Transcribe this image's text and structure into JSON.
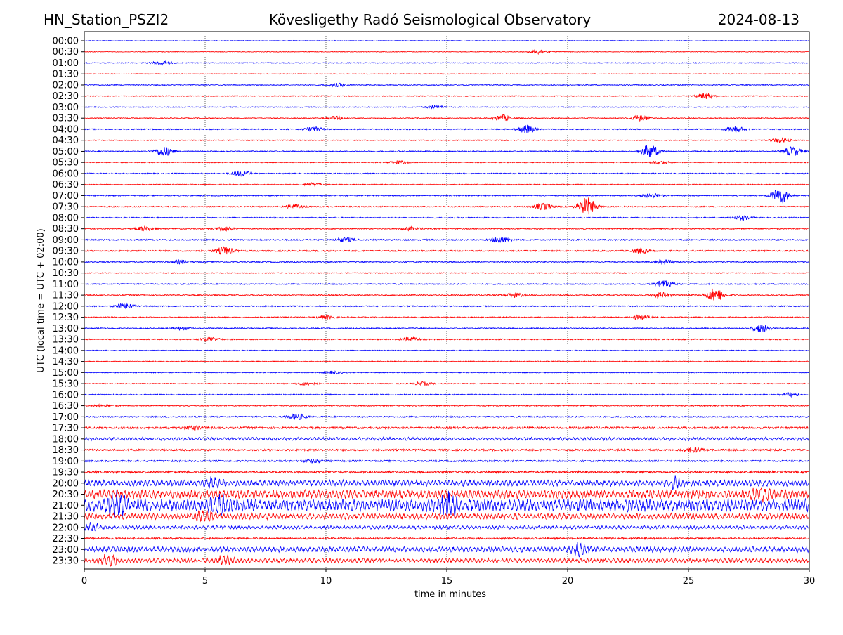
{
  "header": {
    "station": "HN_Station_PSZI2",
    "observatory": "Kövesligethy Radó Seismological Observatory",
    "date": "2024-08-13"
  },
  "chart_data": {
    "type": "line",
    "title": "Kövesligethy Radó Seismological Observatory",
    "xlabel": "time in minutes",
    "ylabel": "UTC (local time = UTC + 02:00)",
    "xlim": [
      0,
      30
    ],
    "xticks": [
      "0",
      "5",
      "10",
      "15",
      "20",
      "25",
      "30"
    ],
    "grid": "vertical dotted at 5-minute ticks",
    "colors": {
      "even": "#0000ff",
      "odd": "#ff0000"
    },
    "rows": [
      "00:00",
      "00:30",
      "01:00",
      "01:30",
      "02:00",
      "02:30",
      "03:00",
      "03:30",
      "04:00",
      "04:30",
      "05:00",
      "05:30",
      "06:00",
      "06:30",
      "07:00",
      "07:30",
      "08:00",
      "08:30",
      "09:00",
      "09:30",
      "10:00",
      "10:30",
      "11:00",
      "11:30",
      "12:00",
      "12:30",
      "13:00",
      "13:30",
      "14:00",
      "14:30",
      "15:00",
      "15:30",
      "16:00",
      "16:30",
      "17:00",
      "17:30",
      "18:00",
      "18:30",
      "19:00",
      "19:30",
      "20:00",
      "20:30",
      "21:00",
      "21:30",
      "22:00",
      "22:30",
      "23:00",
      "23:30"
    ],
    "noise_level": [
      0.03,
      0.03,
      0.04,
      0.03,
      0.04,
      0.04,
      0.04,
      0.04,
      0.05,
      0.04,
      0.05,
      0.04,
      0.05,
      0.04,
      0.05,
      0.05,
      0.05,
      0.05,
      0.06,
      0.06,
      0.05,
      0.04,
      0.05,
      0.05,
      0.05,
      0.05,
      0.05,
      0.05,
      0.04,
      0.04,
      0.04,
      0.04,
      0.05,
      0.05,
      0.06,
      0.09,
      0.13,
      0.08,
      0.07,
      0.1,
      0.25,
      0.35,
      0.5,
      0.25,
      0.14,
      0.08,
      0.22,
      0.18
    ],
    "events_min_amp": [
      [],
      [
        [
          18.8,
          0.2
        ]
      ],
      [
        [
          3.2,
          0.2
        ]
      ],
      [],
      [
        [
          10.5,
          0.15
        ]
      ],
      [
        [
          25.7,
          0.25
        ]
      ],
      [
        [
          14.5,
          0.15
        ]
      ],
      [
        [
          17.3,
          0.3
        ],
        [
          23,
          0.25
        ],
        [
          10.4,
          0.15
        ]
      ],
      [
        [
          18.3,
          0.35
        ],
        [
          9.5,
          0.2
        ],
        [
          26.9,
          0.3
        ]
      ],
      [
        [
          28.8,
          0.2
        ]
      ],
      [
        [
          3.3,
          0.4
        ],
        [
          23.4,
          0.6
        ],
        [
          29.3,
          0.4
        ]
      ],
      [
        [
          13,
          0.15
        ],
        [
          23.8,
          0.15
        ]
      ],
      [
        [
          6.5,
          0.25
        ]
      ],
      [
        [
          9.5,
          0.15
        ]
      ],
      [
        [
          28.8,
          0.7
        ],
        [
          23.5,
          0.2
        ]
      ],
      [
        [
          19,
          0.3
        ],
        [
          20.8,
          0.8
        ],
        [
          8.7,
          0.2
        ]
      ],
      [
        [
          27.2,
          0.2
        ]
      ],
      [
        [
          2.5,
          0.2
        ],
        [
          5.8,
          0.2
        ],
        [
          13.5,
          0.15
        ]
      ],
      [
        [
          17.2,
          0.3
        ],
        [
          10.8,
          0.2
        ]
      ],
      [
        [
          5.8,
          0.35
        ],
        [
          23,
          0.2
        ]
      ],
      [
        [
          4,
          0.15
        ],
        [
          24,
          0.2
        ]
      ],
      [],
      [
        [
          24,
          0.3
        ]
      ],
      [
        [
          17.8,
          0.2
        ],
        [
          23.9,
          0.25
        ],
        [
          26.1,
          0.6
        ]
      ],
      [
        [
          1.7,
          0.25
        ]
      ],
      [
        [
          10,
          0.15
        ],
        [
          23,
          0.2
        ]
      ],
      [
        [
          28,
          0.35
        ],
        [
          4,
          0.15
        ]
      ],
      [
        [
          5.2,
          0.2
        ],
        [
          13.5,
          0.2
        ]
      ],
      [],
      [],
      [
        [
          10.3,
          0.12
        ]
      ],
      [
        [
          9.2,
          0.15
        ],
        [
          14,
          0.15
        ]
      ],
      [
        [
          29.2,
          0.15
        ]
      ],
      [
        [
          0.8,
          0.12
        ]
      ],
      [
        [
          8.8,
          0.25
        ]
      ],
      [
        [
          4.5,
          0.15
        ]
      ],
      [],
      [
        [
          25.2,
          0.2
        ]
      ],
      [
        [
          9.5,
          0.15
        ]
      ],
      [],
      [
        [
          5.3,
          0.3
        ],
        [
          24.5,
          0.4
        ]
      ],
      [
        [
          28,
          0.4
        ]
      ],
      [
        [
          1.3,
          0.8
        ],
        [
          15.1,
          0.7
        ],
        [
          5.6,
          0.6
        ]
      ],
      [
        [
          5,
          0.35
        ]
      ],
      [
        [
          0.3,
          0.3
        ]
      ],
      [],
      [
        [
          20.5,
          0.4
        ]
      ],
      [
        [
          1,
          0.5
        ],
        [
          5.8,
          0.3
        ]
      ]
    ]
  }
}
